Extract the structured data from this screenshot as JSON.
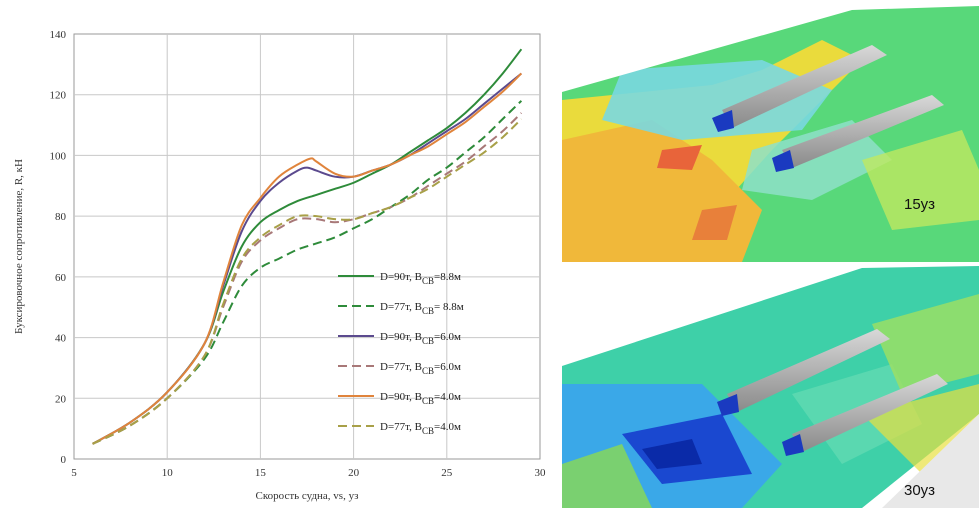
{
  "chart_data": {
    "type": "line",
    "xlabel": "Скорость судна, vs, уз",
    "ylabel": "Буксировочное сопротивление, R, кН",
    "xlim": [
      5,
      30
    ],
    "ylim": [
      0,
      140
    ],
    "xticks": [
      5,
      10,
      15,
      20,
      25,
      30
    ],
    "yticks": [
      0,
      20,
      40,
      60,
      80,
      100,
      120,
      140
    ],
    "grid": true,
    "legend_position": "bottom-right",
    "series": [
      {
        "name_main": "D=90т,  B",
        "name_sub": "CB",
        "name_tail": "=8.8м",
        "color": "#2e8b3a",
        "dash": false,
        "points": [
          [
            6,
            5
          ],
          [
            8,
            12
          ],
          [
            10,
            22
          ],
          [
            12,
            38
          ],
          [
            13,
            55
          ],
          [
            14,
            70
          ],
          [
            15,
            78
          ],
          [
            16,
            82
          ],
          [
            17,
            85
          ],
          [
            18,
            87
          ],
          [
            19,
            89
          ],
          [
            20,
            91
          ],
          [
            21,
            94
          ],
          [
            22,
            97
          ],
          [
            23,
            101
          ],
          [
            24,
            105
          ],
          [
            25,
            109
          ],
          [
            26,
            114
          ],
          [
            27,
            120
          ],
          [
            28,
            127
          ],
          [
            29,
            135
          ]
        ]
      },
      {
        "name_main": "D=77т,  B",
        "name_sub": "CB",
        "name_tail": "= 8.8м",
        "color": "#2e8b3a",
        "dash": true,
        "points": [
          [
            6,
            5
          ],
          [
            8,
            11
          ],
          [
            10,
            20
          ],
          [
            12,
            33
          ],
          [
            13,
            45
          ],
          [
            14,
            57
          ],
          [
            15,
            63
          ],
          [
            16,
            66
          ],
          [
            17,
            69
          ],
          [
            18,
            71
          ],
          [
            19,
            73
          ],
          [
            20,
            76
          ],
          [
            21,
            79
          ],
          [
            22,
            83
          ],
          [
            23,
            87
          ],
          [
            24,
            92
          ],
          [
            25,
            96
          ],
          [
            26,
            101
          ],
          [
            27,
            106
          ],
          [
            28,
            112
          ],
          [
            29,
            118
          ]
        ]
      },
      {
        "name_main": "D=90т,  B",
        "name_sub": "CB",
        "name_tail": "=6.0м",
        "color": "#5b4a8e",
        "dash": false,
        "points": [
          [
            6,
            5
          ],
          [
            8,
            12
          ],
          [
            10,
            22
          ],
          [
            12,
            38
          ],
          [
            13,
            57
          ],
          [
            14,
            75
          ],
          [
            15,
            85
          ],
          [
            16,
            91
          ],
          [
            17,
            95
          ],
          [
            17.5,
            96
          ],
          [
            18,
            95
          ],
          [
            19,
            93
          ],
          [
            20,
            93
          ],
          [
            21,
            95
          ],
          [
            22,
            97
          ],
          [
            23,
            100
          ],
          [
            24,
            104
          ],
          [
            25,
            108
          ],
          [
            26,
            112
          ],
          [
            27,
            117
          ],
          [
            28,
            122
          ],
          [
            29,
            127
          ]
        ]
      },
      {
        "name_main": "D=77т,  B",
        "name_sub": "CB",
        "name_tail": "=6.0м",
        "color": "#a87878",
        "dash": true,
        "points": [
          [
            6,
            5
          ],
          [
            8,
            11
          ],
          [
            10,
            20
          ],
          [
            12,
            34
          ],
          [
            13,
            50
          ],
          [
            14,
            65
          ],
          [
            15,
            72
          ],
          [
            16,
            76
          ],
          [
            17,
            79
          ],
          [
            18,
            79
          ],
          [
            19,
            78
          ],
          [
            20,
            79
          ],
          [
            21,
            81
          ],
          [
            22,
            83
          ],
          [
            23,
            86
          ],
          [
            24,
            90
          ],
          [
            25,
            94
          ],
          [
            26,
            98
          ],
          [
            27,
            103
          ],
          [
            28,
            108
          ],
          [
            29,
            114
          ]
        ]
      },
      {
        "name_main": "D=90т,  B",
        "name_sub": "CB",
        "name_tail": "=4.0м",
        "color": "#e0843c",
        "dash": false,
        "points": [
          [
            6,
            5
          ],
          [
            8,
            12
          ],
          [
            10,
            22
          ],
          [
            12,
            38
          ],
          [
            13,
            58
          ],
          [
            14,
            77
          ],
          [
            15,
            86
          ],
          [
            16,
            93
          ],
          [
            17,
            97
          ],
          [
            17.7,
            99
          ],
          [
            18,
            98
          ],
          [
            19,
            94
          ],
          [
            20,
            93
          ],
          [
            21,
            95
          ],
          [
            22,
            97
          ],
          [
            23,
            100
          ],
          [
            24,
            103
          ],
          [
            25,
            107
          ],
          [
            26,
            111
          ],
          [
            27,
            116
          ],
          [
            28,
            121
          ],
          [
            29,
            127
          ]
        ]
      },
      {
        "name_main": "D=77т,  B",
        "name_sub": "CB",
        "name_tail": "=4.0м",
        "color": "#a8a048",
        "dash": true,
        "points": [
          [
            6,
            5
          ],
          [
            8,
            11
          ],
          [
            10,
            20
          ],
          [
            12,
            34
          ],
          [
            13,
            51
          ],
          [
            14,
            66
          ],
          [
            15,
            73
          ],
          [
            16,
            77
          ],
          [
            17,
            80
          ],
          [
            18,
            80
          ],
          [
            19,
            79
          ],
          [
            20,
            79
          ],
          [
            21,
            81
          ],
          [
            22,
            83
          ],
          [
            23,
            86
          ],
          [
            24,
            89
          ],
          [
            25,
            93
          ],
          [
            26,
            97
          ],
          [
            27,
            101
          ],
          [
            28,
            106
          ],
          [
            29,
            112
          ]
        ]
      }
    ]
  },
  "panels": {
    "top_label": "15уз",
    "bottom_label": "30уз"
  }
}
